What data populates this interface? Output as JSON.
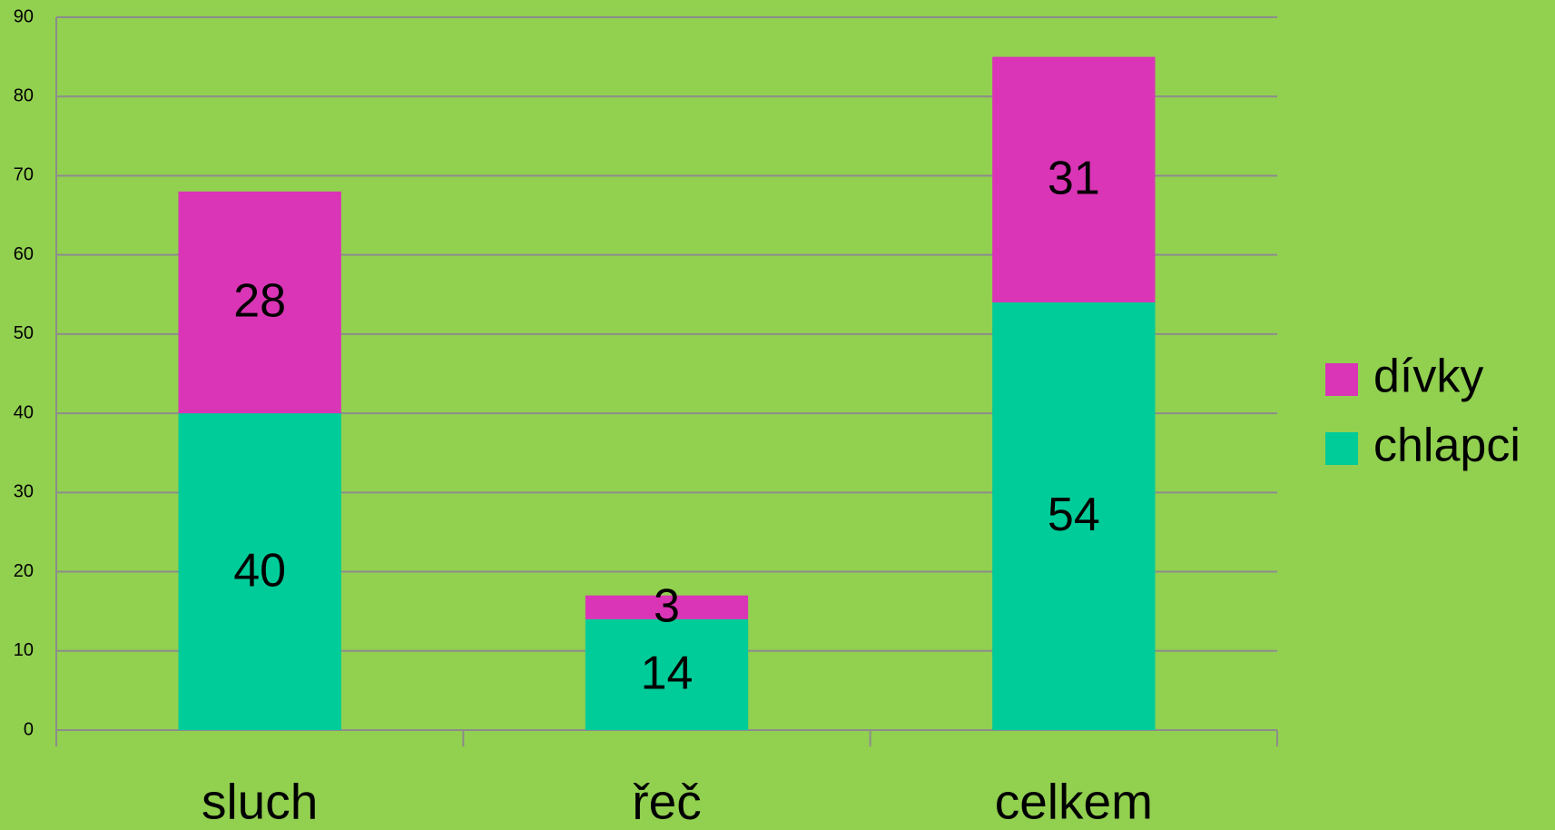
{
  "chart_data": {
    "type": "stacked_bar",
    "categories": [
      "sluch",
      "řeč",
      "celkem"
    ],
    "series": [
      {
        "name": "chlapci",
        "color": "#00cc99",
        "values": [
          40,
          14,
          54
        ]
      },
      {
        "name": "dívky",
        "color": "#d935b6",
        "values": [
          28,
          3,
          31
        ]
      }
    ],
    "ylim": [
      0,
      90
    ],
    "yticks": [
      0,
      10,
      20,
      30,
      40,
      50,
      60,
      70,
      80,
      90
    ],
    "grid": true,
    "legend": "right"
  }
}
